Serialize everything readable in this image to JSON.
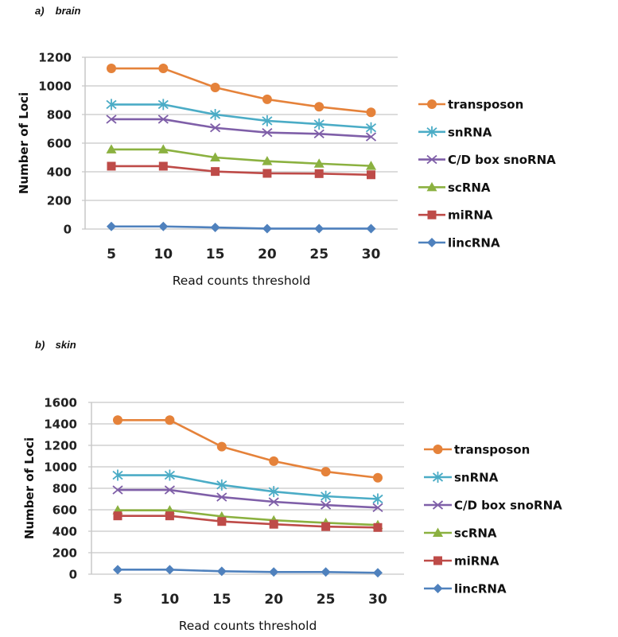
{
  "chart_data": [
    {
      "type": "line",
      "panel_label": "a)",
      "title": "brain",
      "xlabel": "Read counts threshold",
      "ylabel": "Number of Loci",
      "categories": [
        "5",
        "10",
        "15",
        "20",
        "25",
        "30"
      ],
      "ylim": [
        0,
        1200
      ],
      "yticks": [
        "0",
        "200",
        "400",
        "600",
        "800",
        "1000",
        "1200"
      ],
      "grid": true,
      "legend_position": "right",
      "series": [
        {
          "name": "transposon",
          "color": "#E5823A",
          "marker": "circle",
          "values": [
            1122,
            1122,
            989,
            906,
            854,
            815
          ]
        },
        {
          "name": "snRNA",
          "color": "#4BACC6",
          "marker": "asterisk",
          "values": [
            870,
            870,
            800,
            756,
            733,
            707
          ]
        },
        {
          "name": "C/D box snoRNA",
          "color": "#7F5FA8",
          "marker": "x",
          "values": [
            767,
            767,
            707,
            674,
            665,
            644
          ]
        },
        {
          "name": "scRNA",
          "color": "#8BB140",
          "marker": "triangle",
          "values": [
            556,
            556,
            500,
            474,
            457,
            441
          ]
        },
        {
          "name": "miRNA",
          "color": "#BE4B48",
          "marker": "square",
          "values": [
            439,
            439,
            402,
            389,
            387,
            379
          ]
        },
        {
          "name": "lincRNA",
          "color": "#4F81BD",
          "marker": "diamond",
          "values": [
            18,
            18,
            11,
            3,
            3,
            3
          ]
        }
      ]
    },
    {
      "type": "line",
      "panel_label": "b)",
      "title": "skin",
      "xlabel": "Read counts threshold",
      "ylabel": "Number of Loci",
      "categories": [
        "5",
        "10",
        "15",
        "20",
        "25",
        "30"
      ],
      "ylim": [
        0,
        1600
      ],
      "yticks": [
        "0",
        "200",
        "400",
        "600",
        "800",
        "1000",
        "1200",
        "1400",
        "1600"
      ],
      "grid": true,
      "legend_position": "right",
      "series": [
        {
          "name": "transposon",
          "color": "#E5823A",
          "marker": "circle",
          "values": [
            1435,
            1435,
            1188,
            1053,
            955,
            898
          ]
        },
        {
          "name": "snRNA",
          "color": "#4BACC6",
          "marker": "asterisk",
          "values": [
            922,
            922,
            831,
            769,
            726,
            700
          ]
        },
        {
          "name": "C/D box snoRNA",
          "color": "#7F5FA8",
          "marker": "x",
          "values": [
            785,
            785,
            718,
            674,
            644,
            620
          ]
        },
        {
          "name": "scRNA",
          "color": "#8BB140",
          "marker": "triangle",
          "values": [
            595,
            595,
            538,
            502,
            478,
            458
          ]
        },
        {
          "name": "miRNA",
          "color": "#BE4B48",
          "marker": "square",
          "values": [
            543,
            543,
            491,
            465,
            443,
            435
          ]
        },
        {
          "name": "lincRNA",
          "color": "#4F81BD",
          "marker": "diamond",
          "values": [
            42,
            42,
            27,
            20,
            20,
            13
          ]
        }
      ]
    }
  ]
}
